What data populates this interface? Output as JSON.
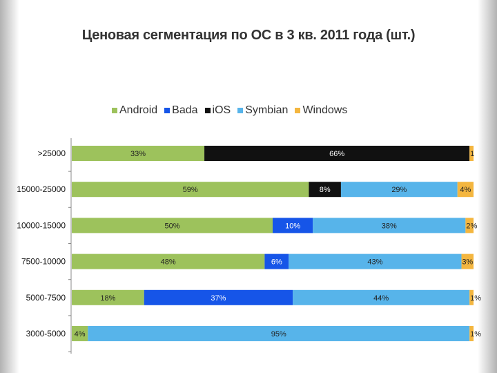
{
  "title": "Ценовая сегментация по ОС в 3 кв. 2011 года (шт.)",
  "colors": {
    "Android": "#9dc25c",
    "Bada": "#1655e8",
    "iOS": "#111111",
    "Symbian": "#57b4ea",
    "Windows": "#f4b63f"
  },
  "chart_data": {
    "type": "bar",
    "orientation": "horizontal",
    "stacked": true,
    "title": "Ценовая сегментация по ОС в 3 кв. 2011 года (шт.)",
    "legend_position": "top",
    "categories": [
      ">25000",
      "15000-25000",
      "10000-15000",
      "7500-10000",
      "5000-7500",
      "3000-5000"
    ],
    "series": [
      {
        "name": "Android",
        "values": [
          33,
          59,
          50,
          48,
          18,
          4
        ],
        "labels": [
          "33%",
          "59%",
          "50%",
          "48%",
          "18%",
          "4%"
        ]
      },
      {
        "name": "Bada",
        "values": [
          0,
          0,
          10,
          6,
          37,
          0
        ],
        "labels": [
          "",
          "",
          "10%",
          "6%",
          "37%",
          ""
        ]
      },
      {
        "name": "iOS",
        "values": [
          66,
          8,
          0,
          0,
          0,
          0
        ],
        "labels": [
          "66%",
          "8%",
          "",
          "",
          "",
          ""
        ]
      },
      {
        "name": "Symbian",
        "values": [
          0,
          29,
          38,
          43,
          44,
          95
        ],
        "labels": [
          "",
          "29%",
          "38%",
          "43%",
          "44%",
          "95%"
        ]
      },
      {
        "name": "Windows",
        "values": [
          1,
          4,
          2,
          3,
          1,
          1
        ],
        "labels": [
          "1",
          "4%",
          "2%",
          "3%",
          "1%",
          "1%"
        ]
      }
    ],
    "xlim": [
      0,
      100
    ]
  }
}
